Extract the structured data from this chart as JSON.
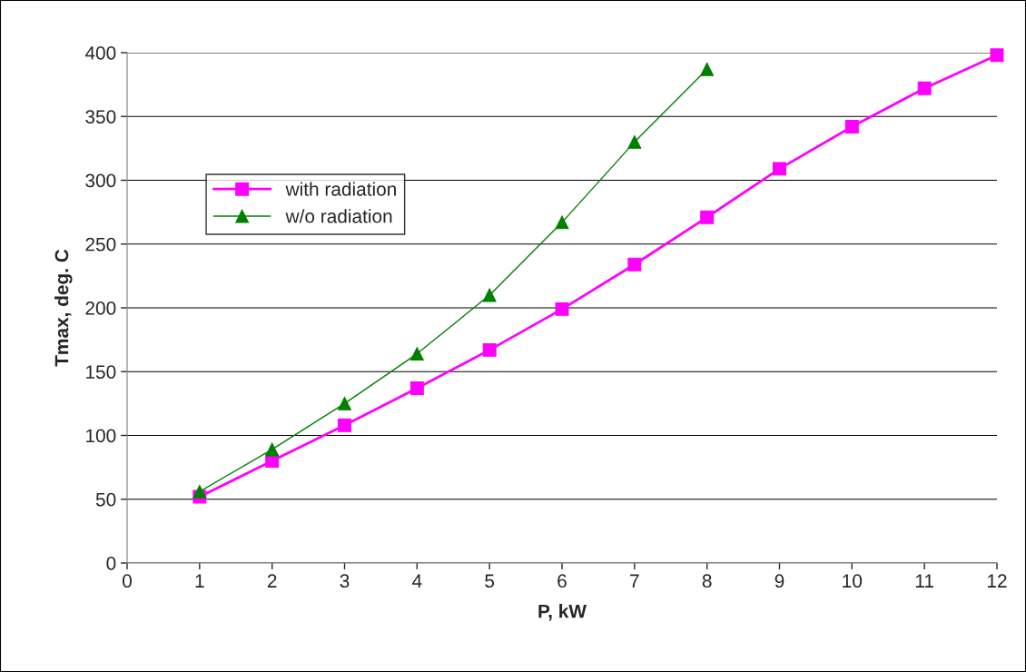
{
  "chart_data": {
    "type": "line",
    "xlabel": "P, kW",
    "ylabel": "Tmax, deg. C",
    "xlim": [
      0,
      12
    ],
    "xticks": [
      0,
      1,
      2,
      3,
      4,
      5,
      6,
      7,
      8,
      9,
      10,
      11,
      12
    ],
    "ylim": [
      0,
      400
    ],
    "yticks": [
      0,
      50,
      100,
      150,
      200,
      250,
      300,
      350,
      400
    ],
    "grid": "y",
    "legend": "top left",
    "series": [
      {
        "name": "with radiation",
        "color": "#ff00ff",
        "marker": "square",
        "x": [
          1,
          2,
          3,
          4,
          5,
          6,
          7,
          8,
          9,
          10,
          11,
          12
        ],
        "values": [
          52,
          80,
          108,
          137,
          167,
          199,
          234,
          271,
          309,
          342,
          372,
          398
        ]
      },
      {
        "name": "w/o radiation",
        "color": "#008000",
        "marker": "triangle",
        "x": [
          1,
          2,
          3,
          4,
          5,
          6,
          7,
          8
        ],
        "values": [
          56,
          89,
          125,
          164,
          210,
          267,
          330,
          387
        ]
      }
    ]
  }
}
